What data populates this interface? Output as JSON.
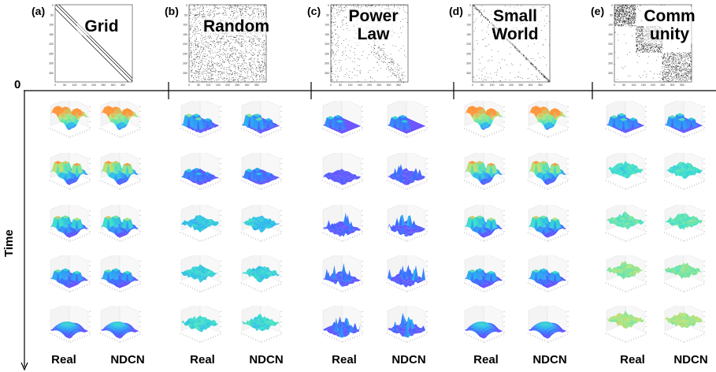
{
  "panels": [
    {
      "label": "(a)",
      "title_lines": [
        "Grid"
      ],
      "matrix": "grid",
      "surface": "grid"
    },
    {
      "label": "(b)",
      "title_lines": [
        "Random"
      ],
      "matrix": "random",
      "surface": "random"
    },
    {
      "label": "(c)",
      "title_lines": [
        "Power",
        "Law"
      ],
      "matrix": "powerlaw",
      "surface": "powerlaw"
    },
    {
      "label": "(d)",
      "title_lines": [
        "Small",
        "World"
      ],
      "matrix": "smallworld",
      "surface": "grid"
    },
    {
      "label": "(e)",
      "title_lines": [
        "Comm",
        "unity"
      ],
      "matrix": "community",
      "surface": "community"
    }
  ],
  "column_labels": [
    "Real",
    "NDCN"
  ],
  "axis": {
    "origin_label": "0",
    "time_label": "Time"
  },
  "matrix_ticks": [
    "0",
    "50",
    "100",
    "150",
    "200",
    "250",
    "300",
    "350"
  ],
  "time_rows": 5,
  "colors": {
    "matrix_dot": "#1a1a1a",
    "floor": "#7b3fff",
    "grid_line": "#dddddd",
    "axis_line": "#000000"
  }
}
